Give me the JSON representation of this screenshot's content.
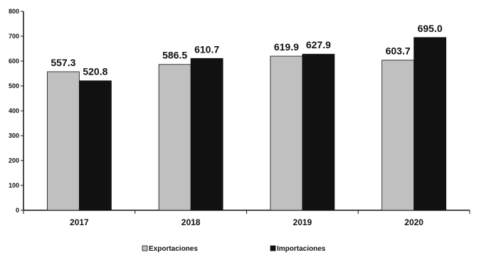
{
  "chart_data": {
    "type": "bar",
    "categories": [
      "2017",
      "2018",
      "2019",
      "2020"
    ],
    "series": [
      {
        "name": "Exportaciones",
        "values": [
          557.3,
          586.5,
          619.9,
          603.7
        ],
        "color": "#c0c0c0"
      },
      {
        "name": "Importaciones",
        "values": [
          520.8,
          610.7,
          627.9,
          695.0
        ],
        "color": "#111111"
      }
    ],
    "data_labels": [
      [
        "557.3",
        "586.5",
        "619.9",
        "603.7"
      ],
      [
        "520.8",
        "610.7",
        "627.9",
        "695.0"
      ]
    ],
    "ylim": [
      0,
      800
    ],
    "yticks": [
      0,
      100,
      200,
      300,
      400,
      500,
      600,
      700,
      800
    ],
    "grid": false,
    "legend_position": "bottom-center"
  }
}
